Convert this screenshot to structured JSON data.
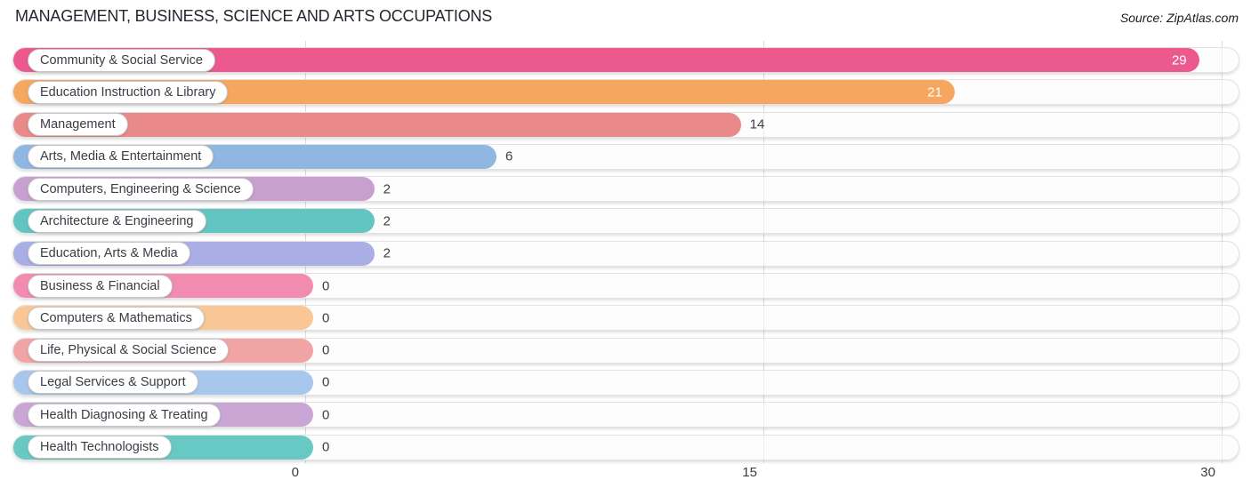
{
  "header": {
    "title": "MANAGEMENT, BUSINESS, SCIENCE AND ARTS OCCUPATIONS",
    "source": "Source: ZipAtlas.com"
  },
  "chart_data": {
    "type": "bar",
    "orientation": "horizontal",
    "title": "MANAGEMENT, BUSINESS, SCIENCE AND ARTS OCCUPATIONS",
    "source": "Source: ZipAtlas.com",
    "categories": [
      "Community & Social Service",
      "Education Instruction & Library",
      "Management",
      "Arts, Media & Entertainment",
      "Computers, Engineering & Science",
      "Architecture & Engineering",
      "Education, Arts & Media",
      "Business & Financial",
      "Computers & Mathematics",
      "Life, Physical & Social Science",
      "Legal Services & Support",
      "Health Diagnosing & Treating",
      "Health Technologists"
    ],
    "values": [
      29,
      21,
      14,
      6,
      2,
      2,
      2,
      0,
      0,
      0,
      0,
      0,
      0
    ],
    "colors": [
      "#EC5A8D",
      "#F5A75F",
      "#E98989",
      "#90B7E2",
      "#C8A0D0",
      "#62C5C2",
      "#A9AFE4",
      "#F18BB0",
      "#F8C795",
      "#F0A4A4",
      "#A8C7EC",
      "#C9A6D4",
      "#68C9C4"
    ],
    "xlim": [
      0,
      30
    ],
    "x_ticks": [
      "0",
      "15",
      "30"
    ],
    "grid": "vertical-gridlines-at-ticks",
    "legend": "none",
    "value_label_color_inside": "#ffffff",
    "value_label_color_outside": "#3b3f46",
    "background": "#ffffff"
  }
}
